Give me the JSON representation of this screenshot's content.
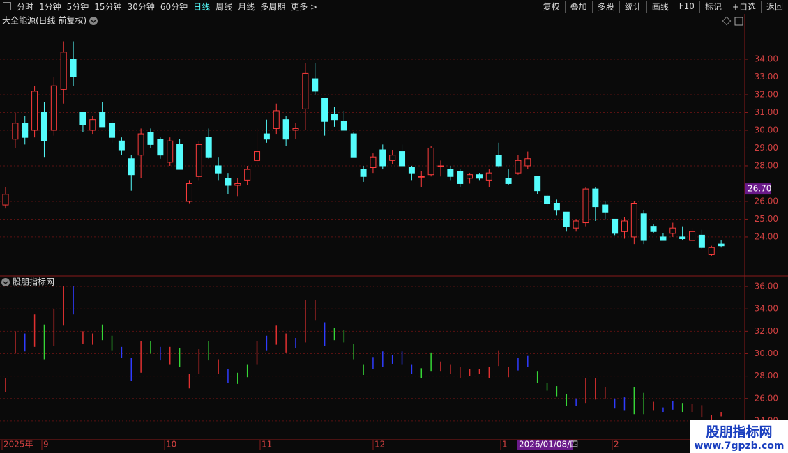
{
  "toolbar": {
    "left": [
      "分时",
      "1分钟",
      "5分钟",
      "15分钟",
      "30分钟",
      "60分钟",
      "日线",
      "周线",
      "月线",
      "多周期",
      "更多 >"
    ],
    "active": 6,
    "right": [
      "复权",
      "叠加",
      "多股",
      "统计",
      "画线",
      "F10",
      "标记",
      "+自选",
      "返回"
    ]
  },
  "chart_data": [
    {
      "type": "candlestick",
      "title": "大全能源(日线 前复权)",
      "open": [
        25.8,
        29.5,
        30.4,
        30.0,
        31.0,
        30.0,
        32.3,
        34.0,
        31.0,
        30.0,
        31.0,
        30.4,
        29.4,
        28.4,
        28.6,
        29.9,
        29.5,
        28.2,
        29.2,
        26.0,
        27.4,
        29.6,
        28.0,
        27.3,
        26.9,
        27.2,
        28.3,
        29.8,
        30.1,
        30.6,
        30.0,
        31.2,
        32.9,
        31.8,
        30.9,
        30.5,
        29.8,
        27.8,
        27.9,
        28.9,
        28.3,
        28.8,
        27.9,
        27.4,
        27.5,
        28.0,
        27.8,
        27.7,
        27.3,
        27.5,
        27.2,
        28.6,
        27.3,
        27.6,
        28.0,
        27.4,
        26.3,
        25.9,
        25.4,
        24.5,
        24.8,
        26.7,
        25.8,
        25.0,
        24.3,
        24.0,
        25.3,
        24.6,
        24.0,
        24.2,
        24.0,
        23.8,
        24.1,
        23.0,
        23.6
      ],
      "high": [
        26.8,
        31.0,
        30.8,
        32.5,
        31.6,
        33.0,
        35.0,
        35.0,
        31.0,
        30.8,
        31.6,
        30.6,
        29.6,
        28.6,
        30.1,
        30.1,
        29.6,
        29.6,
        29.5,
        27.2,
        29.4,
        30.1,
        28.5,
        27.6,
        27.3,
        28.0,
        30.1,
        30.6,
        31.5,
        30.8,
        30.4,
        33.8,
        33.8,
        31.8,
        31.3,
        31.1,
        29.9,
        28.0,
        28.7,
        29.2,
        28.9,
        29.2,
        28.0,
        27.7,
        29.1,
        28.3,
        28.0,
        27.8,
        27.6,
        27.6,
        27.8,
        29.3,
        27.8,
        28.6,
        28.8,
        27.4,
        26.4,
        26.1,
        25.4,
        25.0,
        26.8,
        26.8,
        26.0,
        25.0,
        25.1,
        26.0,
        25.5,
        24.7,
        24.2,
        24.8,
        24.6,
        24.5,
        24.4,
        23.5,
        23.8
      ],
      "low": [
        25.6,
        29.0,
        29.2,
        29.6,
        28.5,
        29.7,
        31.5,
        32.5,
        29.9,
        29.8,
        30.2,
        29.3,
        28.6,
        26.6,
        27.3,
        29.0,
        28.4,
        28.0,
        27.8,
        25.9,
        27.2,
        28.4,
        27.2,
        26.4,
        26.3,
        26.9,
        28.0,
        29.3,
        29.8,
        29.1,
        29.5,
        30.0,
        32.0,
        29.7,
        30.2,
        30.0,
        28.5,
        27.1,
        27.6,
        27.8,
        28.1,
        28.0,
        27.2,
        26.8,
        27.4,
        27.4,
        27.2,
        26.8,
        27.0,
        27.2,
        26.8,
        27.9,
        26.9,
        27.5,
        27.8,
        26.4,
        25.7,
        25.2,
        24.3,
        24.3,
        24.6,
        24.9,
        25.0,
        24.1,
        23.9,
        23.6,
        23.6,
        24.2,
        23.8,
        24.0,
        23.8,
        23.8,
        23.3,
        22.9,
        23.4
      ],
      "close": [
        26.4,
        30.4,
        29.6,
        32.2,
        29.4,
        32.5,
        34.4,
        33.0,
        30.3,
        30.6,
        30.2,
        29.6,
        28.9,
        27.5,
        29.8,
        29.2,
        28.6,
        29.4,
        27.8,
        27.0,
        29.2,
        28.5,
        27.6,
        26.9,
        27.0,
        27.8,
        28.8,
        29.5,
        31.1,
        29.5,
        30.1,
        33.2,
        32.2,
        30.5,
        30.6,
        30.0,
        28.5,
        27.4,
        28.5,
        28.0,
        28.6,
        28.0,
        27.6,
        27.4,
        29.0,
        28.0,
        27.4,
        27.0,
        27.5,
        27.3,
        27.6,
        28.0,
        27.0,
        28.3,
        28.4,
        26.6,
        25.9,
        25.5,
        24.6,
        24.9,
        26.7,
        25.7,
        25.4,
        24.2,
        24.9,
        25.9,
        23.8,
        24.3,
        23.8,
        24.5,
        23.9,
        24.3,
        23.4,
        23.4,
        23.5
      ],
      "ylim": [
        21.84,
        36.55
      ],
      "yticks": [
        {
          "value": 24,
          "label": "24.00"
        },
        {
          "value": 25,
          "label": "25.00"
        },
        {
          "value": 26,
          "label": "26.00"
        },
        {
          "value": 28,
          "label": "28.00"
        },
        {
          "value": 29,
          "label": "29.00"
        },
        {
          "value": 30,
          "label": "30.00"
        },
        {
          "value": 31,
          "label": "31.00"
        },
        {
          "value": 32,
          "label": "32.00"
        },
        {
          "value": 33,
          "label": "33.00"
        },
        {
          "value": 34,
          "label": "34.00"
        }
      ],
      "last_price": {
        "value": 26.7,
        "label": "26.70"
      },
      "up_color": "#ff3c3c",
      "down_color": "#54fcfc",
      "grid": true
    },
    {
      "type": "range_bar",
      "title": "股朋指标网",
      "low": [
        26.6,
        30.0,
        30.2,
        30.6,
        29.5,
        30.7,
        32.5,
        33.5,
        30.9,
        30.8,
        31.2,
        30.3,
        29.6,
        27.6,
        28.3,
        30.0,
        29.4,
        29.0,
        28.8,
        26.9,
        28.2,
        29.4,
        28.2,
        27.4,
        27.3,
        27.9,
        29.0,
        30.3,
        30.8,
        30.1,
        30.5,
        31.0,
        33.0,
        30.7,
        31.2,
        31.0,
        29.5,
        28.1,
        28.6,
        28.8,
        29.1,
        29.0,
        28.2,
        27.8,
        28.4,
        28.4,
        28.2,
        27.8,
        28.0,
        28.2,
        27.8,
        28.9,
        27.9,
        28.5,
        28.8,
        27.4,
        26.7,
        26.2,
        25.3,
        25.3,
        25.6,
        25.9,
        26.0,
        25.1,
        24.9,
        24.6,
        24.6,
        24.9,
        24.8,
        25.0,
        24.8,
        24.8,
        24.3,
        23.9,
        24.4
      ],
      "high": [
        27.8,
        32.0,
        31.8,
        33.5,
        32.6,
        34.0,
        36.0,
        36.0,
        32.0,
        31.8,
        32.6,
        31.6,
        30.6,
        29.6,
        31.1,
        31.1,
        30.6,
        30.6,
        30.5,
        28.2,
        30.4,
        31.1,
        29.5,
        28.6,
        28.3,
        29.0,
        31.1,
        31.6,
        32.5,
        31.8,
        31.4,
        34.8,
        34.8,
        32.8,
        32.3,
        32.1,
        30.9,
        29.0,
        29.7,
        30.2,
        29.9,
        30.2,
        29.0,
        28.7,
        30.1,
        29.3,
        29.0,
        28.8,
        28.6,
        28.6,
        28.8,
        30.3,
        28.8,
        29.6,
        29.8,
        28.4,
        27.4,
        27.1,
        26.4,
        26.0,
        27.8,
        27.8,
        27.0,
        26.0,
        26.1,
        27.0,
        26.5,
        25.7,
        25.2,
        25.8,
        25.6,
        25.5,
        25.4,
        24.5,
        24.8
      ],
      "colors": [
        "r",
        "r",
        "b",
        "r",
        "g",
        "r",
        "r",
        "b",
        "r",
        "r",
        "g",
        "g",
        "b",
        "b",
        "r",
        "g",
        "b",
        "r",
        "g",
        "r",
        "r",
        "g",
        "r",
        "b",
        "g",
        "g",
        "r",
        "b",
        "r",
        "r",
        "b",
        "r",
        "r",
        "b",
        "g",
        "g",
        "g",
        "g",
        "b",
        "b",
        "b",
        "b",
        "b",
        "g",
        "g",
        "r",
        "r",
        "r",
        "r",
        "r",
        "r",
        "r",
        "r",
        "b",
        "b",
        "g",
        "g",
        "g",
        "g",
        "b",
        "r",
        "r",
        "r",
        "b",
        "b",
        "g",
        "g",
        "r",
        "b",
        "b",
        "g",
        "r",
        "r",
        "r",
        "r"
      ],
      "palette": {
        "r": "#e03030",
        "b": "#2f3cff",
        "g": "#36d636"
      },
      "ylim": [
        22.375,
        36.875
      ],
      "yticks": [
        {
          "value": 24,
          "label": "24.00"
        },
        {
          "value": 26,
          "label": "26.00"
        },
        {
          "value": 28,
          "label": "28.00"
        },
        {
          "value": 30,
          "label": "30.00"
        },
        {
          "value": 32,
          "label": "32.00"
        },
        {
          "value": 34,
          "label": "34.00"
        },
        {
          "value": 36,
          "label": "36.00"
        }
      ],
      "grid": true
    }
  ],
  "x_axis": {
    "labels": [
      "2025年",
      "9",
      "10",
      "11",
      "12",
      "1",
      "2"
    ],
    "cursor_date": "2026/01/08/四"
  },
  "watermark": {
    "title": "股朋指标网",
    "url": "www.7gpzb.com"
  }
}
